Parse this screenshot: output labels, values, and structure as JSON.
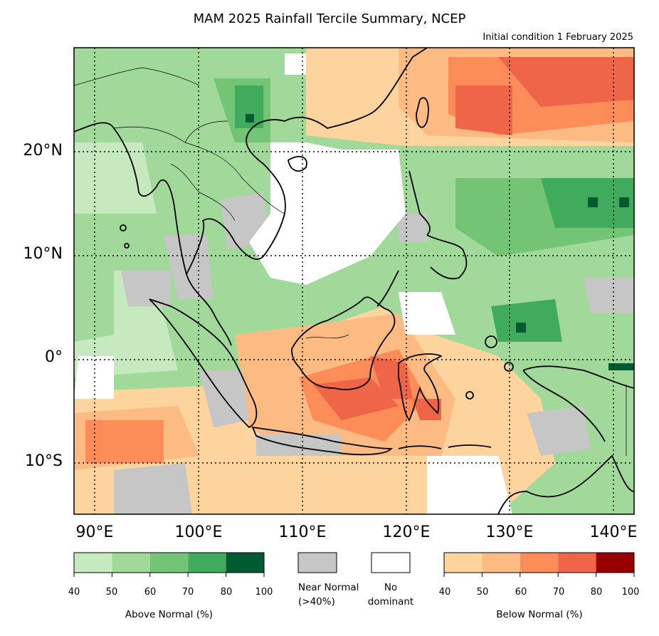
{
  "title": "MAM 2025 Rainfall Tercile Summary, NCEP",
  "subtitle": "Initial condition 1 February 2025",
  "axes": {
    "lat_labels": [
      "20°N",
      "10°N",
      "0°",
      "10°S"
    ],
    "lon_labels": [
      "90°E",
      "100°E",
      "110°E",
      "120°E",
      "130°E",
      "140°E"
    ]
  },
  "colors": {
    "above": [
      "#c7e9c0",
      "#a1d99b",
      "#74c476",
      "#41ab5d",
      "#005a32"
    ],
    "near_normal": "#c6c6c6",
    "no_dominant": "#ffffff",
    "below": [
      "#fdd49e",
      "#fdbb84",
      "#fc8d59",
      "#ef6548",
      "#990000"
    ]
  },
  "legend": {
    "above_title": "Above Normal (%)",
    "above_ticks": [
      "40",
      "50",
      "60",
      "70",
      "80",
      "100"
    ],
    "near_normal_label_1": "Near Normal",
    "near_normal_label_2": "(>40%)",
    "no_dominant_label_1": "No",
    "no_dominant_label_2": "dominant",
    "below_title": "Below Normal (%)",
    "below_ticks": [
      "40",
      "50",
      "60",
      "70",
      "80",
      "100"
    ]
  }
}
